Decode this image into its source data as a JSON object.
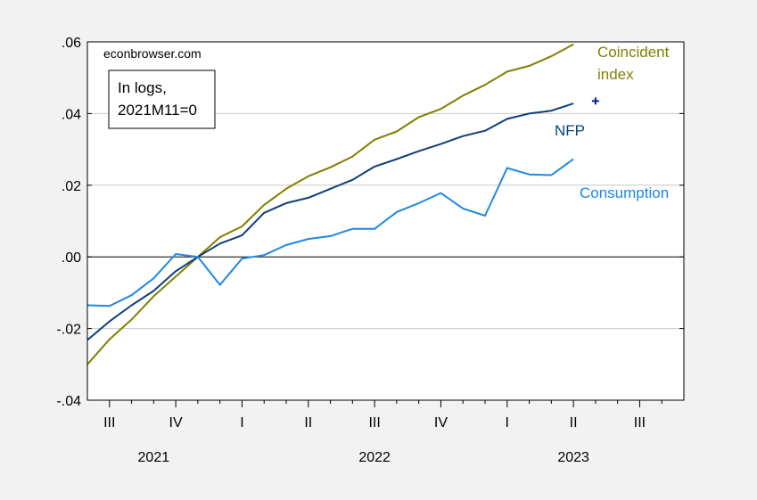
{
  "chart_data": {
    "type": "line",
    "source_label": "econbrowser.com",
    "note_lines": [
      "In logs,",
      "2021M11=0"
    ],
    "x_start": "2021-06",
    "x_end": "2023-09",
    "xlim": [
      "2021-06",
      "2023-09"
    ],
    "ylim": [
      -0.04,
      0.06
    ],
    "y_ticks": [
      {
        "value": -0.04,
        "label": "-.04"
      },
      {
        "value": -0.02,
        "label": "-.02"
      },
      {
        "value": 0.0,
        "label": ".00"
      },
      {
        "value": 0.02,
        "label": ".02"
      },
      {
        "value": 0.04,
        "label": ".04"
      },
      {
        "value": 0.06,
        "label": ".06"
      }
    ],
    "quarter_ticks": [
      {
        "date": "2021-07",
        "label": "III"
      },
      {
        "date": "2021-10",
        "label": "IV"
      },
      {
        "date": "2022-01",
        "label": "I"
      },
      {
        "date": "2022-04",
        "label": "II"
      },
      {
        "date": "2022-07",
        "label": "III"
      },
      {
        "date": "2022-10",
        "label": "IV"
      },
      {
        "date": "2023-01",
        "label": "I"
      },
      {
        "date": "2023-04",
        "label": "II"
      },
      {
        "date": "2023-07",
        "label": "III"
      }
    ],
    "year_labels": [
      {
        "date": "2021-09",
        "label": "2021"
      },
      {
        "date": "2022-07",
        "label": "2022"
      },
      {
        "date": "2023-04",
        "label": "2023"
      }
    ],
    "grid": true,
    "zero_line": true,
    "months": [
      "2021-06",
      "2021-07",
      "2021-08",
      "2021-09",
      "2021-10",
      "2021-11",
      "2021-12",
      "2022-01",
      "2022-02",
      "2022-03",
      "2022-04",
      "2022-05",
      "2022-06",
      "2022-07",
      "2022-08",
      "2022-09",
      "2022-10",
      "2022-11",
      "2022-12",
      "2023-01",
      "2023-02",
      "2023-03",
      "2023-04"
    ],
    "series": [
      {
        "name": "Coincident index",
        "label_lines": [
          "Coincident",
          "index"
        ],
        "color": "#808000",
        "values": [
          -0.03,
          -0.023,
          -0.0175,
          -0.011,
          -0.0055,
          0.0,
          0.0055,
          0.0085,
          0.0145,
          0.019,
          0.0225,
          0.025,
          0.028,
          0.0327,
          0.035,
          0.039,
          0.0413,
          0.045,
          0.048,
          0.0517,
          0.0533,
          0.056,
          0.0593
        ]
      },
      {
        "name": "NFP",
        "label_lines": [
          "NFP"
        ],
        "color": "#0d3f7a",
        "values": [
          -0.0232,
          -0.018,
          -0.0135,
          -0.0095,
          -0.004,
          0.0,
          0.0037,
          0.006,
          0.0123,
          0.015,
          0.0165,
          0.019,
          0.0215,
          0.0252,
          0.0273,
          0.0295,
          0.0315,
          0.0337,
          0.0352,
          0.0385,
          0.04,
          0.0408,
          0.0428
        ]
      },
      {
        "name": "Consumption",
        "label_lines": [
          "Consumption"
        ],
        "color": "#1e88e5",
        "values": [
          -0.0135,
          -0.0137,
          -0.0107,
          -0.006,
          0.0008,
          0.0,
          -0.0078,
          -0.0005,
          0.0005,
          0.0033,
          0.005,
          0.0058,
          0.0078,
          0.0078,
          0.0125,
          0.015,
          0.0178,
          0.0135,
          0.0115,
          0.0248,
          0.023,
          0.0228,
          0.0273
        ]
      }
    ],
    "marker_points": [
      {
        "name": "NFP",
        "date": "2023-05",
        "value": 0.0435,
        "color": "#0d1f8a",
        "symbol": "+"
      }
    ]
  }
}
